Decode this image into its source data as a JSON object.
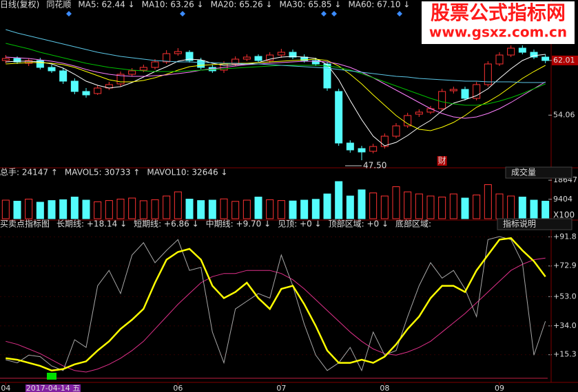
{
  "chart_data": [
    {
      "type": "candlestick",
      "title": "日线(复权)",
      "subtitle": "同花顺",
      "open": [
        62.0,
        62.3,
        61.6,
        62.0,
        61.0,
        60.5,
        59.0,
        57.5,
        57.2,
        58.0,
        58.6,
        60.0,
        60.6,
        61.0,
        61.8,
        63.0,
        63.2,
        62.0,
        61.0,
        60.6,
        61.5,
        62.2,
        62.6,
        62.0,
        62.8,
        63.2,
        62.5,
        62.0,
        61.5,
        57.5,
        50.0,
        49.2,
        48.8,
        49.5,
        51.0,
        52.5,
        54.2,
        54.5,
        55.0,
        57.6,
        57.8,
        56.5,
        58.5,
        61.5,
        62.8,
        63.8,
        63.2,
        62.5
      ],
      "high": [
        62.8,
        62.6,
        62.3,
        62.4,
        61.4,
        60.9,
        59.4,
        58.0,
        58.4,
        58.9,
        60.4,
        60.9,
        61.4,
        62.2,
        63.5,
        63.8,
        63.5,
        62.4,
        61.4,
        61.9,
        62.6,
        62.9,
        62.9,
        63.2,
        63.7,
        63.6,
        62.9,
        62.4,
        61.8,
        57.9,
        50.4,
        49.6,
        49.9,
        51.4,
        52.9,
        54.4,
        54.9,
        55.4,
        57.9,
        58.2,
        58.2,
        58.9,
        61.9,
        63.2,
        64.2,
        64.2,
        63.6,
        62.9
      ],
      "low": [
        61.6,
        61.5,
        61.2,
        60.7,
        60.2,
        58.6,
        57.1,
        56.6,
        57.0,
        57.7,
        58.2,
        59.7,
        60.3,
        60.7,
        61.5,
        62.7,
        61.7,
        60.7,
        60.2,
        60.2,
        61.2,
        61.9,
        61.7,
        61.7,
        62.4,
        62.2,
        61.7,
        61.2,
        57.6,
        49.6,
        48.6,
        47.5,
        48.5,
        49.2,
        50.7,
        52.2,
        53.8,
        54.2,
        54.7,
        57.2,
        56.2,
        56.2,
        58.2,
        61.2,
        62.5,
        62.9,
        62.2,
        61.6
      ],
      "close": [
        62.3,
        61.8,
        62.0,
        61.0,
        60.5,
        59.0,
        57.5,
        57.0,
        58.0,
        58.5,
        60.0,
        60.5,
        61.0,
        61.8,
        63.0,
        63.3,
        62.0,
        61.0,
        60.5,
        61.5,
        62.2,
        62.5,
        62.0,
        62.8,
        63.2,
        62.5,
        62.0,
        61.5,
        58.0,
        50.0,
        49.0,
        48.7,
        49.5,
        51.0,
        52.5,
        54.0,
        54.5,
        55.0,
        57.5,
        57.8,
        56.5,
        58.5,
        61.5,
        62.8,
        63.8,
        63.2,
        62.5,
        62.0
      ],
      "up_color": "#ff3232",
      "down_color": "#54fcfc",
      "series": [
        {
          "name": "MA5: 62.44 ↓",
          "color": "#ffffff",
          "values": [
            61.8,
            61.9,
            61.9,
            61.8,
            61.5,
            60.9,
            60.0,
            59.0,
            58.4,
            58.0,
            58.2,
            58.8,
            59.6,
            60.4,
            61.1,
            61.9,
            62.2,
            62.1,
            61.6,
            61.3,
            61.4,
            61.5,
            61.7,
            62.2,
            62.5,
            62.6,
            62.5,
            62.3,
            61.4,
            59.2,
            56.2,
            53.4,
            51.0,
            49.6,
            50.1,
            51.1,
            52.3,
            53.3,
            54.7,
            55.8,
            56.3,
            56.9,
            57.9,
            59.4,
            60.8,
            62.0,
            62.7,
            62.9
          ]
        },
        {
          "name": "MA10: 63.26 ↓",
          "color": "#ffff00",
          "values": [
            61.5,
            61.6,
            61.7,
            61.7,
            61.6,
            61.4,
            61.0,
            60.4,
            59.8,
            59.2,
            58.9,
            58.9,
            59.1,
            59.5,
            60.0,
            60.6,
            61.1,
            61.3,
            61.4,
            61.5,
            61.6,
            61.6,
            61.7,
            61.8,
            61.9,
            62.0,
            62.1,
            62.2,
            62.0,
            61.2,
            60.0,
            58.6,
            57.0,
            55.5,
            54.0,
            52.8,
            52.0,
            51.8,
            52.3,
            53.0,
            54.0,
            55.2,
            56.0,
            57.0,
            58.2,
            59.4,
            60.4,
            61.3
          ]
        },
        {
          "name": "MA20: 65.26 ↓",
          "color": "#ff80ff",
          "values": [
            62.5,
            62.4,
            62.3,
            62.1,
            61.9,
            61.6,
            61.2,
            60.7,
            60.3,
            60.0,
            59.8,
            59.7,
            59.7,
            59.8,
            59.9,
            60.1,
            60.3,
            60.6,
            60.8,
            61.0,
            61.2,
            61.4,
            61.5,
            61.6,
            61.7,
            61.8,
            61.9,
            61.9,
            61.8,
            61.5,
            61.0,
            60.3,
            59.5,
            58.6,
            57.7,
            56.8,
            55.9,
            55.0,
            54.3,
            53.8,
            53.6,
            53.8,
            54.3,
            55.0,
            55.9,
            56.9,
            57.9,
            58.9
          ]
        },
        {
          "name": "MA30: 65.85 ↓",
          "color": "#00c000",
          "values": [
            64.5,
            64.1,
            63.7,
            63.2,
            62.8,
            62.4,
            62.0,
            61.6,
            61.3,
            61.0,
            60.8,
            60.6,
            60.5,
            60.4,
            60.4,
            60.4,
            60.5,
            60.6,
            60.7,
            60.8,
            60.9,
            61.0,
            61.1,
            61.2,
            61.3,
            61.3,
            61.3,
            61.3,
            61.2,
            61.0,
            60.6,
            60.1,
            59.5,
            58.9,
            58.3,
            57.7,
            57.1,
            56.5,
            56.0,
            55.7,
            55.5,
            55.5,
            55.7,
            56.1,
            56.6,
            57.2,
            57.9,
            58.6
          ]
        },
        {
          "name": "MA60: 67.10 ↓",
          "color": "#5cc8e8",
          "values": [
            66.5,
            66.0,
            65.6,
            65.2,
            64.8,
            64.4,
            64.0,
            63.6,
            63.2,
            62.9,
            62.6,
            62.4,
            62.2,
            62.0,
            61.9,
            61.8,
            61.8,
            61.7,
            61.7,
            61.6,
            61.6,
            61.5,
            61.5,
            61.4,
            61.3,
            61.2,
            61.1,
            61.0,
            60.9,
            60.7,
            60.5,
            60.3,
            60.1,
            59.9,
            59.7,
            59.6,
            59.4,
            59.3,
            59.2,
            59.1,
            59.0,
            59.0,
            58.9,
            58.9,
            58.9,
            58.8,
            58.8,
            58.8
          ]
        }
      ],
      "ylim": [
        46.8,
        69.3
      ],
      "yticks": [
        62.01,
        54.06
      ],
      "xlim": [
        -0.5,
        47.5
      ],
      "annotations": [
        {
          "label": "47.50",
          "x": 31,
          "y": 47.5
        },
        {
          "label": "财",
          "x": 38,
          "y": 47.5
        }
      ]
    },
    {
      "type": "bar",
      "header": [
        {
          "text": "总手: 24147 ↑",
          "color": "#54fcfc"
        },
        {
          "text": "MAVOL5: 30733 ↑",
          "color": "#ffff00"
        },
        {
          "text": "MAVOL10: 32646 ↓",
          "color": "#ffffff"
        }
      ],
      "button": "成交量",
      "values": [
        9000,
        8500,
        9500,
        8000,
        8800,
        9200,
        10500,
        9000,
        8200,
        8800,
        9500,
        10000,
        8700,
        9200,
        11000,
        13000,
        9500,
        8800,
        9000,
        9600,
        8400,
        9000,
        10500,
        9200,
        8800,
        8600,
        9000,
        9400,
        12000,
        18000,
        11000,
        14000,
        12500,
        11000,
        15500,
        13000,
        12000,
        11000,
        10500,
        12000,
        10000,
        11500,
        16500,
        12000,
        11000,
        10500,
        9000,
        8500
      ],
      "up_color": "#ff3232",
      "down_color": "#54fcfc",
      "ylim": [
        0,
        20000
      ],
      "yticks": [
        18647,
        9404
      ],
      "yunit": "X100",
      "xlim": [
        -0.5,
        47.5
      ]
    },
    {
      "type": "line",
      "title": "买卖点指标图",
      "series": [
        {
          "name": "长期线: +18.14 ↓",
          "color": "#e0308a",
          "width": 1,
          "values": [
            24,
            22,
            19,
            16,
            12,
            8,
            5,
            4,
            6,
            9,
            13,
            18,
            24,
            32,
            40,
            48,
            55,
            62,
            66,
            68,
            68,
            70,
            70,
            70,
            68,
            64,
            58,
            51,
            44,
            37,
            30,
            24,
            19,
            16,
            15,
            17,
            20,
            24,
            30,
            36,
            42,
            49,
            56,
            63,
            70,
            74,
            77,
            78
          ]
        },
        {
          "name": "短期线: +6.86 ↓",
          "color": "#a8a8a8",
          "width": 1,
          "values": [
            12,
            10,
            15,
            14,
            8,
            5,
            25,
            20,
            60,
            70,
            55,
            80,
            88,
            75,
            83,
            90,
            70,
            72,
            30,
            10,
            45,
            50,
            55,
            52,
            80,
            60,
            35,
            15,
            5,
            10,
            20,
            5,
            30,
            15,
            18,
            40,
            60,
            75,
            65,
            70,
            58,
            40,
            90,
            92,
            90,
            75,
            15,
            37
          ]
        },
        {
          "name": "中期线: +9.70 ↓",
          "color": "#ffff00",
          "width": 2.5,
          "values": [
            13,
            12,
            10,
            8,
            5,
            6,
            9,
            11,
            18,
            24,
            32,
            38,
            45,
            62,
            77,
            82,
            84,
            77,
            60,
            52,
            56,
            62,
            52,
            45,
            58,
            60,
            48,
            34,
            18,
            10,
            10,
            12,
            10,
            14,
            22,
            32,
            40,
            52,
            60,
            60,
            56,
            70,
            80,
            90,
            91,
            83,
            76,
            66
          ]
        }
      ],
      "header_extra": [
        {
          "text": "见顶: +0 ↓",
          "color": "#6a6aff"
        },
        {
          "text": "顶部区域: +0 ↓",
          "color": "#ffff00"
        },
        {
          "text": "底部区域:",
          "color": "#54fcfc"
        }
      ],
      "bottom_zone": [
        4
      ],
      "bottom_zone_color": "#00e000",
      "button": "指标说明",
      "ylim": [
        0,
        96
      ],
      "yticks": [
        {
          "value": 91.8,
          "label": "+91.8"
        },
        {
          "value": 72.9,
          "label": "+72.9"
        },
        {
          "value": 53.0,
          "label": "+53.0"
        },
        {
          "value": 34.0,
          "label": "+34.0"
        },
        {
          "value": 15.3,
          "label": "+15.3"
        }
      ],
      "xlim": [
        -0.5,
        47.5
      ],
      "xticks": [
        {
          "value": 0,
          "label": "04"
        },
        {
          "value": 15,
          "label": "06"
        },
        {
          "value": 24,
          "label": "07"
        },
        {
          "value": 33,
          "label": "08"
        },
        {
          "value": 43,
          "label": "09"
        }
      ],
      "date_marker": {
        "value": 4,
        "label": "2017-04-14 五"
      }
    }
  ],
  "watermark": {
    "title": "股票公式指标网",
    "url": "www.gsxz.com.cn"
  }
}
